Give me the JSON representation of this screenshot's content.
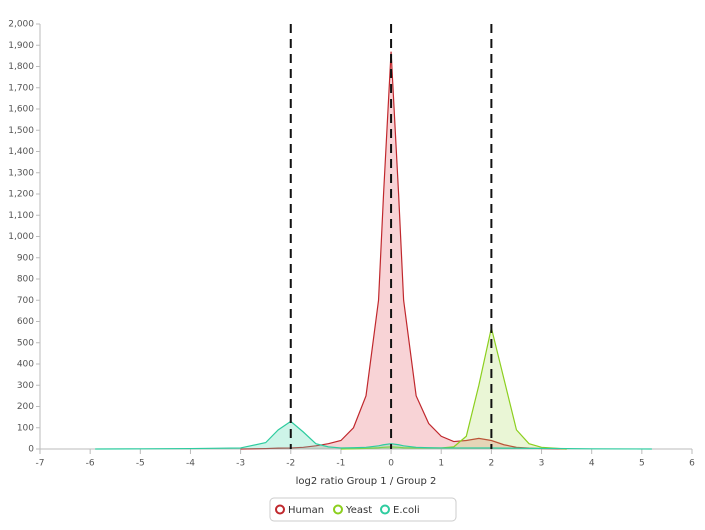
{
  "chart_data": {
    "type": "area",
    "x_label": "log2 ratio Group 1 / Group 2",
    "x": [
      -5.9,
      -5,
      -4,
      -3,
      -2.5,
      -2.25,
      -2,
      -1.75,
      -1.5,
      -1.25,
      -1,
      -0.75,
      -0.5,
      -0.25,
      -0.15,
      0,
      0.15,
      0.25,
      0.5,
      0.75,
      1,
      1.25,
      1.5,
      1.75,
      2,
      2.25,
      2.5,
      2.75,
      3,
      3.5,
      4,
      5.2
    ],
    "series": [
      {
        "name": "Human",
        "color": "#c0282d",
        "fill": "rgba(232,110,120,0.3)",
        "values": [
          null,
          null,
          null,
          0,
          2,
          4,
          5,
          8,
          15,
          25,
          40,
          100,
          250,
          700,
          1200,
          1870,
          1200,
          700,
          250,
          120,
          60,
          35,
          40,
          50,
          40,
          20,
          8,
          4,
          2,
          0,
          null,
          null
        ]
      },
      {
        "name": "Yeast",
        "color": "#8ccf1e",
        "fill": "rgba(170,220,90,0.25)",
        "values": [
          null,
          null,
          null,
          null,
          null,
          null,
          null,
          null,
          null,
          null,
          0,
          1,
          3,
          6,
          8,
          10,
          8,
          6,
          5,
          5,
          5,
          10,
          60,
          300,
          570,
          330,
          90,
          25,
          8,
          0,
          null,
          null
        ]
      },
      {
        "name": "E.coli",
        "color": "#2ecc9f",
        "fill": "rgba(90,220,180,0.3)",
        "values": [
          0,
          1,
          2,
          5,
          30,
          90,
          130,
          80,
          25,
          10,
          5,
          6,
          8,
          15,
          20,
          25,
          20,
          15,
          8,
          6,
          5,
          5,
          5,
          5,
          5,
          4,
          4,
          3,
          3,
          2,
          1,
          0
        ]
      }
    ],
    "reference_lines": [
      -2,
      0,
      2
    ],
    "xlim": [
      -7,
      6
    ],
    "xticks": [
      -7,
      -6,
      -5,
      -4,
      -3,
      -2,
      -1,
      0,
      1,
      2,
      3,
      4,
      5,
      6
    ],
    "ylim": [
      0,
      2000
    ],
    "yticks": [
      0,
      100,
      200,
      300,
      400,
      500,
      600,
      700,
      800,
      900,
      {
        "value": 1000,
        "label": "1,000"
      },
      {
        "value": 1100,
        "label": "1,100"
      },
      {
        "value": 1200,
        "label": "1,200"
      },
      {
        "value": 1300,
        "label": "1,300"
      },
      {
        "value": 1400,
        "label": "1,400"
      },
      {
        "value": 1500,
        "label": "1,500"
      },
      {
        "value": 1600,
        "label": "1,600"
      },
      {
        "value": 1700,
        "label": "1,700"
      },
      {
        "value": 1800,
        "label": "1,800"
      },
      {
        "value": 1900,
        "label": "1,900"
      },
      {
        "value": 2000,
        "label": "2,000"
      }
    ],
    "grid": false
  }
}
